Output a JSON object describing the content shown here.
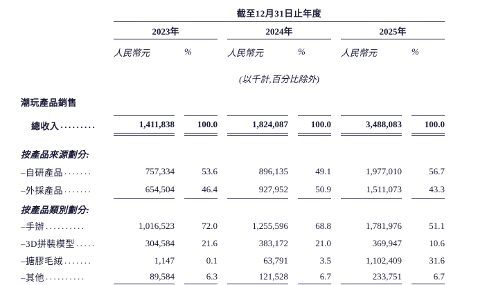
{
  "colors": {
    "text": "#1a1a38",
    "rule": "#1a1a38",
    "background": "#ffffff"
  },
  "table": {
    "period_header": "截至12月31日止年度",
    "years": [
      "2023年",
      "2024年",
      "2025年"
    ],
    "currency_header": "人民幣元",
    "percent_header": "%",
    "units_note": "(以千計,百分比除外)",
    "section_title": "潮玩產品銷售",
    "rows": [
      {
        "id": "total-revenue",
        "label": "總收入",
        "dots": ".........",
        "values": [
          "1,411,838",
          "100.0",
          "1,824,087",
          "100.0",
          "3,488,083",
          "100.0"
        ]
      },
      {
        "id": "by-source-header",
        "label": "按產品來源劃分:"
      },
      {
        "id": "self-developed",
        "label": "–自研產品",
        "dots": ".......",
        "values": [
          "757,334",
          "53.6",
          "896,135",
          "49.1",
          "1,977,010",
          "56.7"
        ]
      },
      {
        "id": "outsourced",
        "label": "–外採產品",
        "dots": ".......",
        "values": [
          "654,504",
          "46.4",
          "927,952",
          "50.9",
          "1,511,073",
          "43.3"
        ]
      },
      {
        "id": "by-category-header",
        "label": "按產品類別劃分:"
      },
      {
        "id": "figures",
        "label": "–手辦",
        "dots": "..........",
        "values": [
          "1,016,523",
          "72.0",
          "1,255,596",
          "68.8",
          "1,781,976",
          "51.1"
        ]
      },
      {
        "id": "3d-models",
        "label": "–3D拼裝模型",
        "dots": ".....",
        "values": [
          "304,584",
          "21.6",
          "383,172",
          "21.0",
          "369,947",
          "10.6"
        ]
      },
      {
        "id": "vinyl-plush",
        "label": "–搪膠毛絨",
        "dots": ".......",
        "values": [
          "1,147",
          "0.1",
          "63,791",
          "3.5",
          "1,102,409",
          "31.6"
        ]
      },
      {
        "id": "others",
        "label": "–其他",
        "dots": "..........",
        "values": [
          "89,584",
          "6.3",
          "121,528",
          "6.7",
          "233,751",
          "6.7"
        ]
      }
    ]
  }
}
